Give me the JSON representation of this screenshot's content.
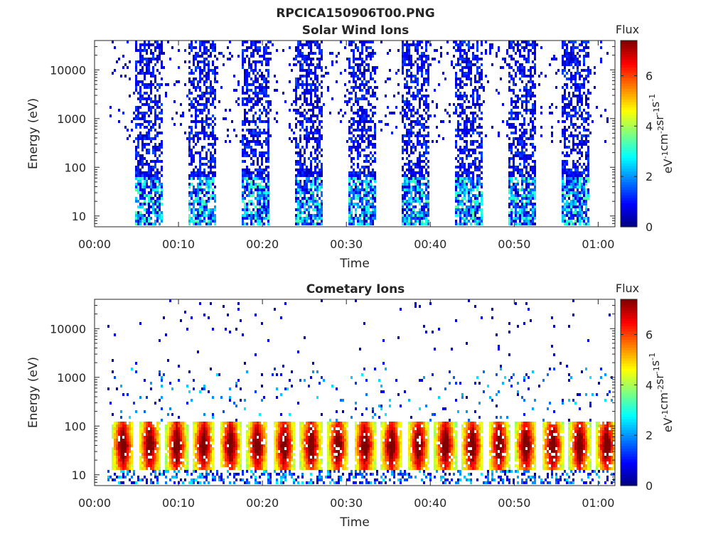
{
  "figure_title": "RPCICA150906T00.PNG",
  "chart_data": [
    {
      "type": "heatmap",
      "title": "Solar Wind Ions",
      "xlabel": "Time",
      "ylabel": "Energy (eV)",
      "yscale": "log",
      "ylim": [
        6,
        40000
      ],
      "xlim_minutes": [
        0,
        62
      ],
      "x_ticks": [
        "00:00",
        "00:10",
        "00:20",
        "00:30",
        "00:40",
        "00:50",
        "01:00"
      ],
      "y_ticks": [
        "10",
        "100",
        "1000",
        "10000"
      ],
      "colorbar": {
        "title": "Flux",
        "label": "eV-1cm-2sr-1s-1",
        "range": [
          0,
          7.4
        ],
        "ticks": [
          "0",
          "2",
          "4",
          "6"
        ],
        "colormap": "jet"
      },
      "bursts_start_minutes": [
        4.9,
        11.2,
        17.6,
        24.0,
        30.3,
        36.6,
        43.0,
        49.3,
        55.7
      ],
      "burst_duration_minutes": 3.2,
      "flux_pattern": "low flux (0-3) spread 6 eV - 40000 eV during bursts; sparse scattered counts between bursts",
      "grid": false
    },
    {
      "type": "heatmap",
      "title": "Cometary Ions",
      "xlabel": "Time",
      "ylabel": "Energy (eV)",
      "yscale": "log",
      "ylim": [
        6,
        40000
      ],
      "xlim_minutes": [
        0,
        62
      ],
      "x_ticks": [
        "00:00",
        "00:10",
        "00:20",
        "00:30",
        "00:40",
        "00:50",
        "01:00"
      ],
      "y_ticks": [
        "10",
        "100",
        "1000",
        "10000"
      ],
      "colorbar": {
        "title": "Flux",
        "label": "eV-1cm-2sr-1s-1",
        "range": [
          0,
          7.4
        ],
        "ticks": [
          "0",
          "2",
          "4",
          "6"
        ],
        "colormap": "jet"
      },
      "peak_centers_minutes": [
        3.4,
        6.6,
        9.8,
        13.0,
        16.2,
        19.4,
        22.6,
        25.8,
        29.0,
        32.2,
        35.4,
        38.6,
        41.8,
        45.0,
        48.2,
        51.4,
        54.6,
        57.8,
        61.0
      ],
      "peak_energy_range_eV": [
        12,
        120
      ],
      "peak_flux": 7,
      "flux_pattern": "recurring high-flux features (5-7) between 12 eV and 120 eV every ~3.2 minutes; sparse low counts up to 10000 eV",
      "grid": false
    }
  ]
}
